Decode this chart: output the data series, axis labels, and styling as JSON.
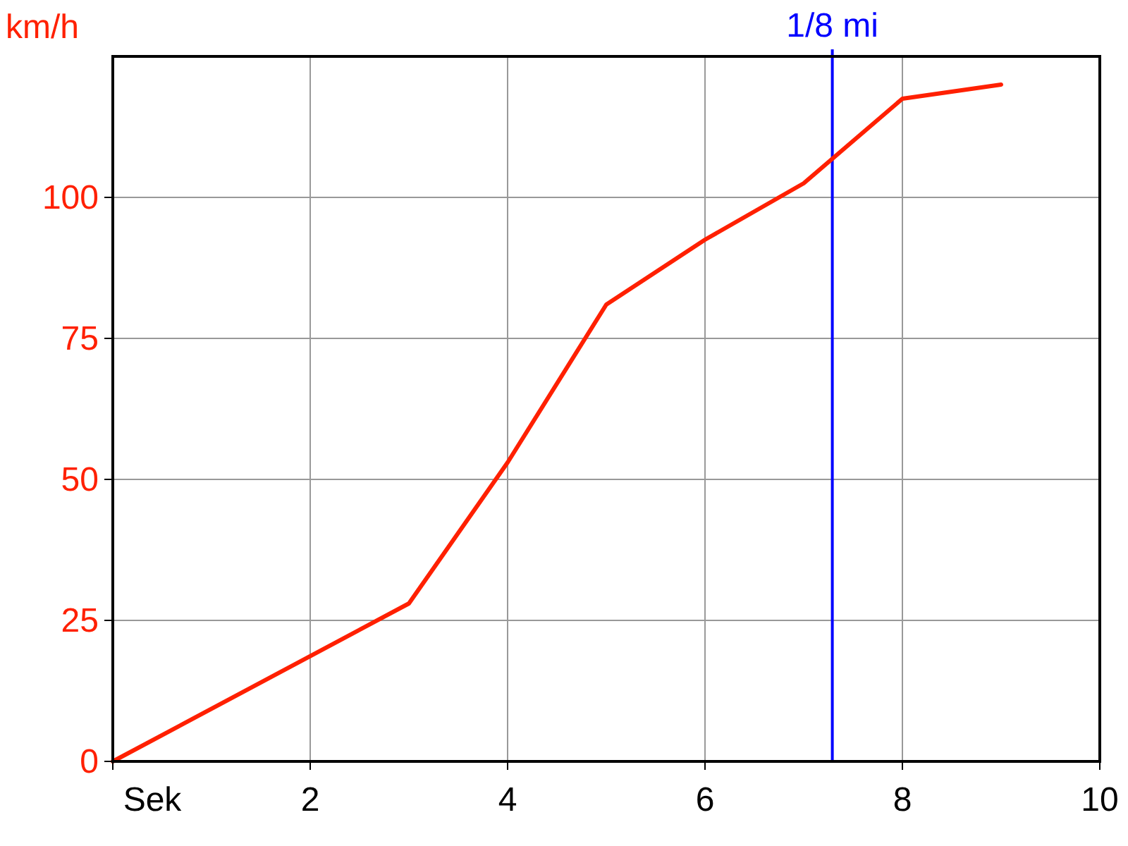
{
  "chart_data": {
    "type": "line",
    "ylabel": "km/h",
    "x": [
      0,
      3,
      4,
      5,
      6,
      7,
      8,
      9
    ],
    "series": [
      {
        "color": "#ff2000",
        "values": [
          0,
          28,
          53,
          81,
          92.5,
          102.5,
          117.5,
          120
        ]
      }
    ],
    "xlim": [
      0,
      10
    ],
    "xticks": [
      {
        "value": 0,
        "label": "Sek"
      },
      2,
      4,
      6,
      8,
      10
    ],
    "ylim": [
      0,
      125
    ],
    "yticks": [
      0,
      25,
      50,
      75,
      100
    ],
    "grid": true,
    "marker": "none",
    "line_style": "solid",
    "ref_lines": [
      {
        "axis": "x",
        "value": 7.29,
        "label": "1/8 mi",
        "color": "#0000ff"
      }
    ]
  }
}
